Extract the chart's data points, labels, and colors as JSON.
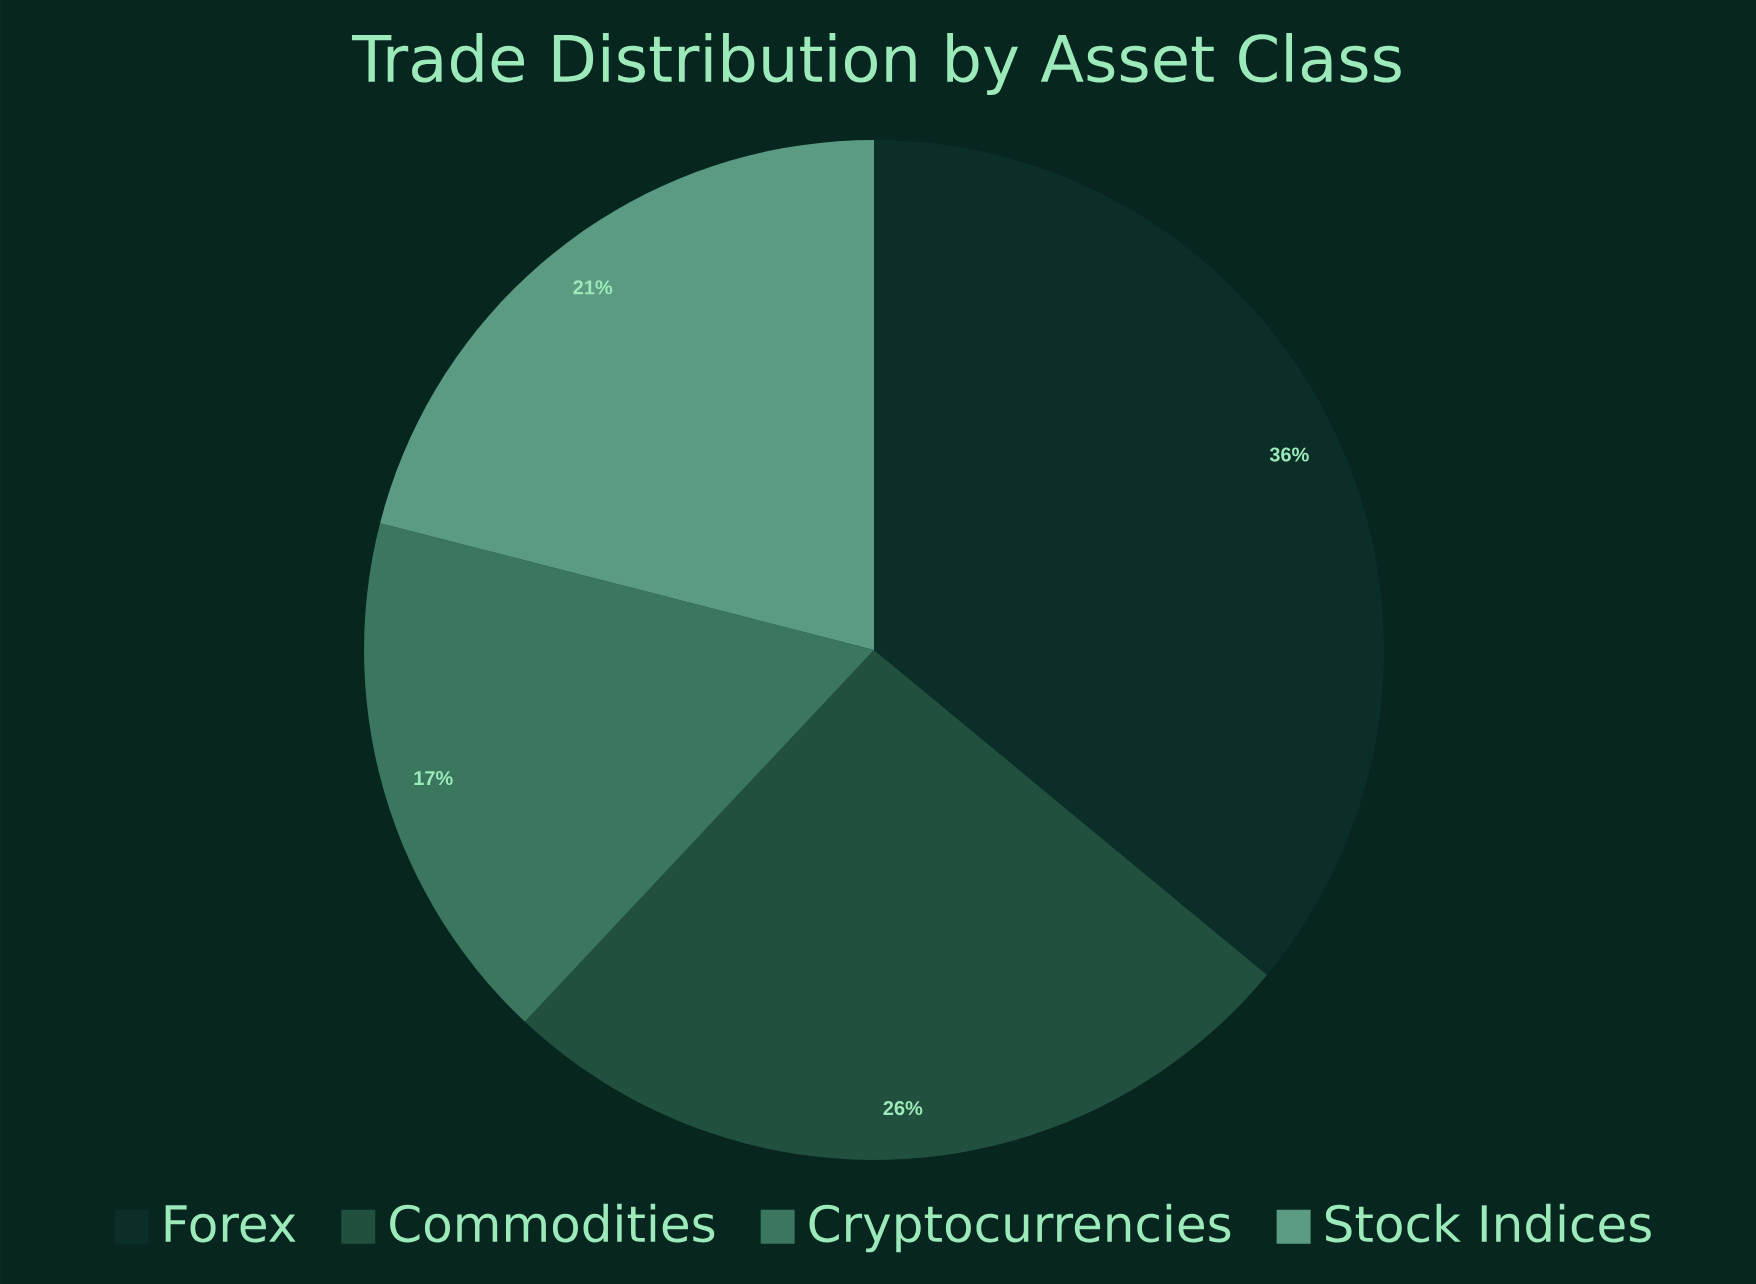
{
  "chart_data": {
    "type": "pie",
    "title": "Trade Distribution by Asset Class",
    "categories": [
      "Forex",
      "Commodities",
      "Cryptocurrencies",
      "Stock Indices"
    ],
    "values": [
      36,
      26,
      17,
      21
    ],
    "colors": [
      "#0b2e28",
      "#22503f",
      "#3a775e",
      "#5b9b82"
    ],
    "value_labels": [
      "36%",
      "26%",
      "17%",
      "21%"
    ],
    "legend": "bottom"
  }
}
